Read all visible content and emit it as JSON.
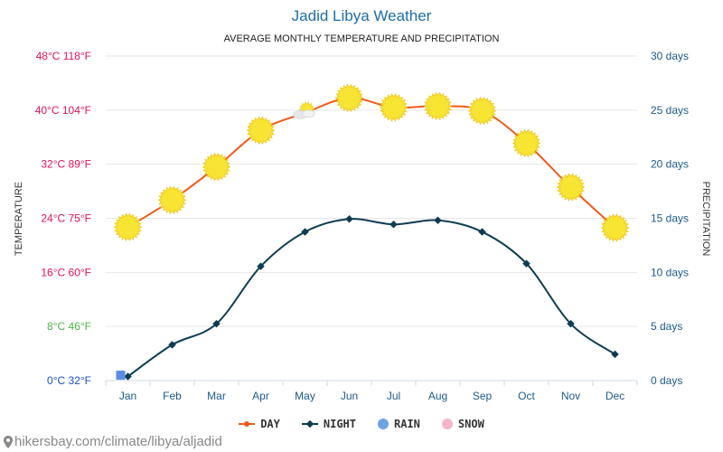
{
  "chart_data": {
    "type": "line",
    "title": "Jadid Libya Weather",
    "subtitle": "AVERAGE MONTHLY TEMPERATURE AND PRECIPITATION",
    "ylabel_left": "TEMPERATURE",
    "ylabel_right": "PRECIPITATION",
    "categories": [
      "Jan",
      "Feb",
      "Mar",
      "Apr",
      "May",
      "Jun",
      "Jul",
      "Aug",
      "Sep",
      "Oct",
      "Nov",
      "Dec"
    ],
    "ylim_left": [
      0,
      48
    ],
    "ylim_right": [
      0,
      30
    ],
    "left_ticks": [
      {
        "value": 0,
        "label": "0°C 32°F",
        "color": "#1a4fc9"
      },
      {
        "value": 8,
        "label": "8°C 46°F",
        "color": "#4cb848"
      },
      {
        "value": 16,
        "label": "16°C 60°F",
        "color": "#e0115f"
      },
      {
        "value": 24,
        "label": "24°C 75°F",
        "color": "#e0115f"
      },
      {
        "value": 32,
        "label": "32°C 89°F",
        "color": "#e0115f"
      },
      {
        "value": 40,
        "label": "40°C 104°F",
        "color": "#e0115f"
      },
      {
        "value": 48,
        "label": "48°C 118°F",
        "color": "#e0115f"
      }
    ],
    "right_ticks": [
      {
        "value": 0,
        "label": "0 days"
      },
      {
        "value": 5,
        "label": "5 days"
      },
      {
        "value": 10,
        "label": "10 days"
      },
      {
        "value": 15,
        "label": "15 days"
      },
      {
        "value": 20,
        "label": "20 days"
      },
      {
        "value": 25,
        "label": "25 days"
      },
      {
        "value": 30,
        "label": "30 days"
      }
    ],
    "series": [
      {
        "name": "DAY",
        "color": "#f05a1a",
        "values": [
          22.7,
          26.7,
          31.6,
          37.0,
          39.6,
          41.8,
          40.4,
          40.6,
          39.9,
          35.1,
          28.6,
          22.6
        ]
      },
      {
        "name": "NIGHT",
        "color": "#0e3d52",
        "values": [
          0.6,
          5.3,
          8.4,
          16.9,
          22.0,
          23.9,
          23.1,
          23.7,
          22.0,
          17.3,
          8.4,
          3.9
        ]
      },
      {
        "name": "RAIN",
        "color": "#5b8de8",
        "values": [
          0.5,
          0,
          0,
          0,
          0,
          0,
          0,
          0,
          0,
          0,
          0,
          0
        ]
      },
      {
        "name": "SNOW",
        "color": "#f7b6c8",
        "values": [
          0,
          0,
          0,
          0,
          0,
          0,
          0,
          0,
          0,
          0,
          0,
          0
        ]
      }
    ],
    "day_icons": [
      "sun",
      "sun",
      "sun",
      "sun",
      "partly-cloudy",
      "sun",
      "sun",
      "sun",
      "sun",
      "sun",
      "sun",
      "sun"
    ],
    "grid": true,
    "legend_position": "bottom"
  },
  "legend": [
    {
      "label": "DAY",
      "color": "#f05a1a",
      "kind": "line"
    },
    {
      "label": "NIGHT",
      "color": "#0e3d52",
      "kind": "diamond"
    },
    {
      "label": "RAIN",
      "color": "#6fa3e0",
      "kind": "circle"
    },
    {
      "label": "SNOW",
      "color": "#f7b6c8",
      "kind": "circle"
    }
  ],
  "source_text": "hikersbay.com/climate/libya/aljadid",
  "colors": {
    "title": "#1d6ea8",
    "axis_right": "#1d5a8c",
    "month_label": "#1d5a8c",
    "grid": "#e6e6e6",
    "sun": "#f7e433",
    "sun_stroke": "#f0c419"
  }
}
